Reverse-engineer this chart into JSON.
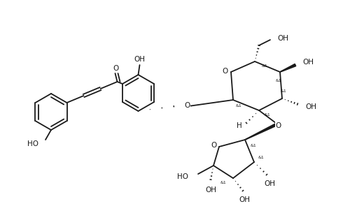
{
  "bg_color": "#ffffff",
  "line_color": "#1a1a1a",
  "line_width": 1.3,
  "font_size": 6.5,
  "fig_width": 5.2,
  "fig_height": 3.02,
  "dpi": 100,
  "xlim": [
    0,
    520
  ],
  "ylim": [
    302,
    0
  ]
}
